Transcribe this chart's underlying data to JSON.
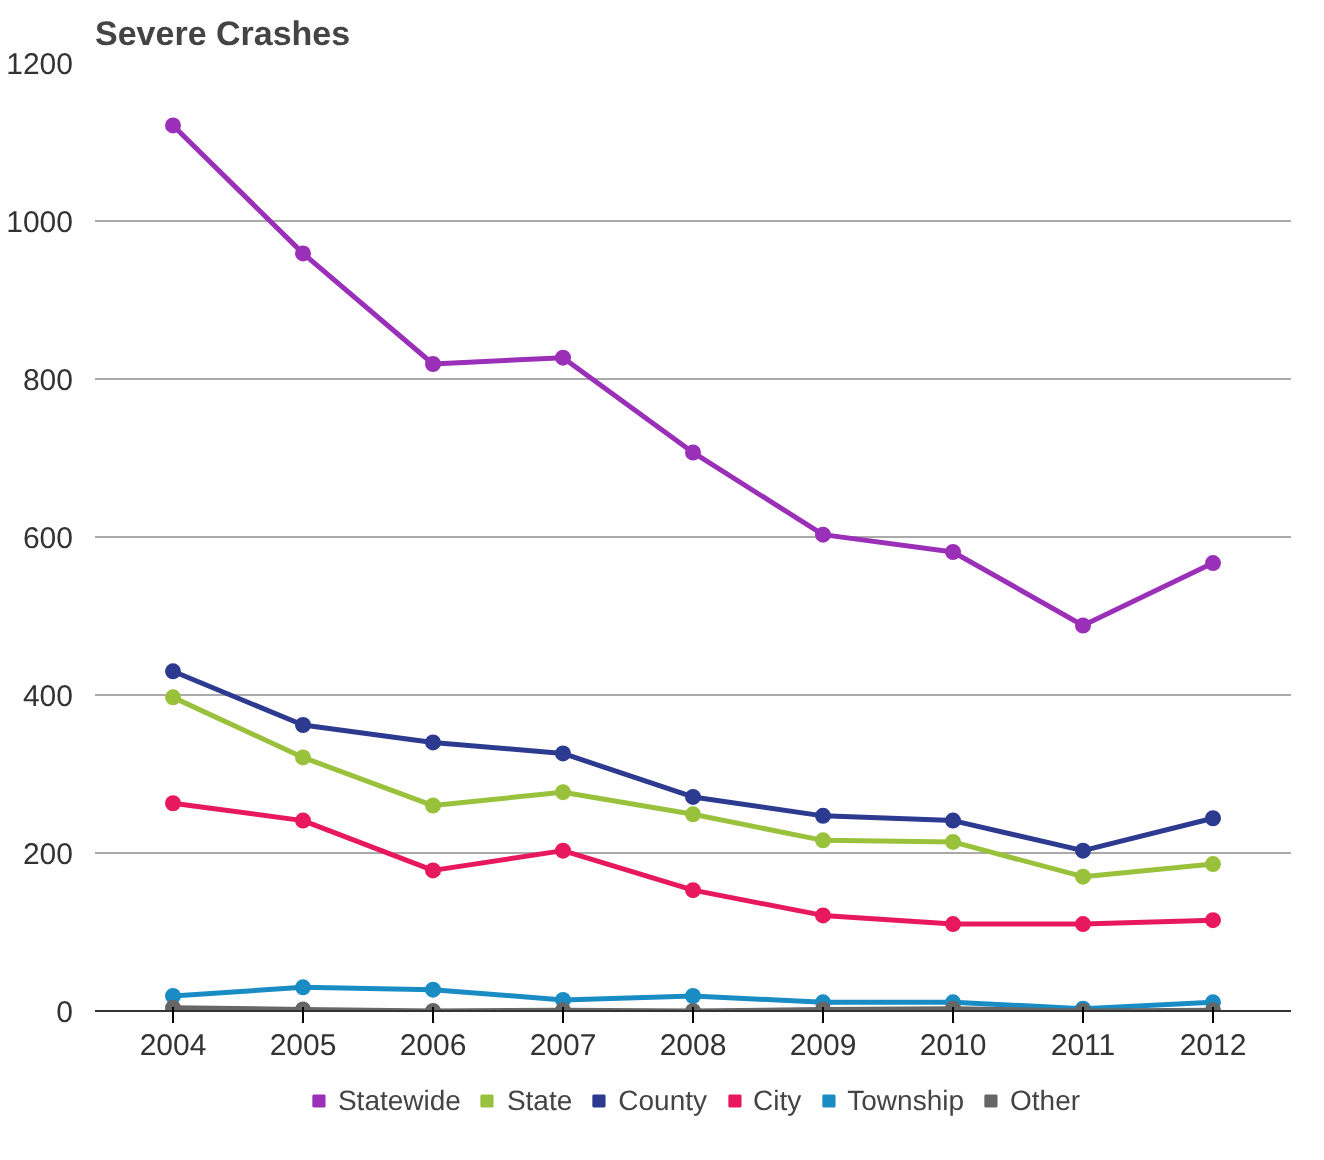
{
  "chart_data": {
    "type": "line",
    "title": "Severe Crashes",
    "categories": [
      "2004",
      "2005",
      "2006",
      "2007",
      "2008",
      "2009",
      "2010",
      "2011",
      "2012"
    ],
    "series": [
      {
        "name": "Statewide",
        "color": "#9b30b8",
        "values": [
          1121,
          959,
          819,
          827,
          707,
          603,
          581,
          488,
          567
        ]
      },
      {
        "name": "State",
        "color": "#99c13c",
        "values": [
          397,
          321,
          260,
          277,
          249,
          216,
          214,
          170,
          186
        ]
      },
      {
        "name": "County",
        "color": "#2c3a8f",
        "values": [
          430,
          362,
          340,
          326,
          271,
          247,
          241,
          203,
          244
        ]
      },
      {
        "name": "City",
        "color": "#e8185f",
        "values": [
          263,
          241,
          178,
          203,
          153,
          121,
          110,
          110,
          115
        ]
      },
      {
        "name": "Township",
        "color": "#1a8cc4",
        "values": [
          19,
          30,
          27,
          14,
          19,
          11,
          11,
          3,
          11
        ]
      },
      {
        "name": "Other",
        "color": "#666666",
        "values": [
          4,
          2,
          0,
          1,
          0,
          2,
          3,
          0,
          1
        ]
      }
    ],
    "ylim": [
      0,
      1200
    ],
    "yticks": [
      0,
      200,
      400,
      600,
      800,
      1000,
      1200
    ],
    "grid": "y",
    "legend": "bottom",
    "marker": "circle",
    "line_style": "solid"
  }
}
